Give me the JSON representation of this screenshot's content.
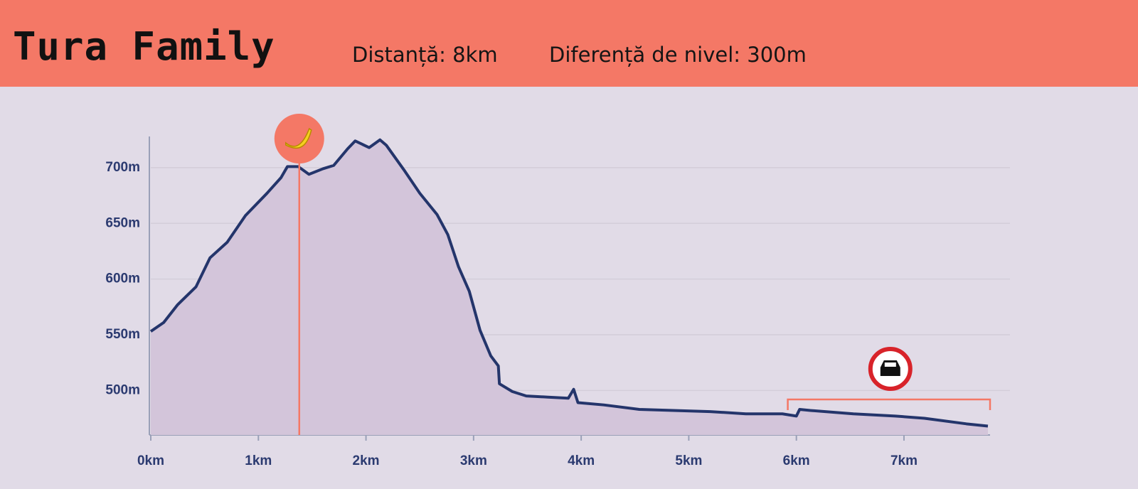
{
  "header": {
    "title": "Tura Family",
    "distance": "Distanță: 8km",
    "elevation": "Diferență de nivel: 300m"
  },
  "chart_data": {
    "type": "area",
    "x": [
      0,
      0.12,
      0.25,
      0.42,
      0.55,
      0.71,
      0.88,
      1.08,
      1.21,
      1.27,
      1.37,
      1.47,
      1.6,
      1.7,
      1.83,
      1.9,
      2.03,
      2.13,
      2.19,
      2.36,
      2.5,
      2.66,
      2.76,
      2.86,
      2.96,
      3.06,
      3.16,
      3.23,
      3.24,
      3.36,
      3.49,
      3.69,
      3.88,
      3.93,
      3.97,
      4.21,
      4.54,
      5.2,
      5.53,
      5.87,
      6.0,
      6.03,
      6.13,
      6.53,
      6.92,
      7.19,
      7.58,
      7.78
    ],
    "series": [
      {
        "color": "#24356b",
        "values": [
          553,
          561,
          577,
          593,
          619,
          633,
          657,
          677,
          691,
          701,
          701,
          694,
          699,
          702,
          717,
          724,
          718,
          725,
          720,
          697,
          677,
          658,
          640,
          611,
          589,
          554,
          531,
          522,
          506,
          499,
          495,
          494,
          493,
          501,
          489,
          487,
          483,
          481,
          479,
          479,
          477,
          483,
          482,
          479,
          477,
          475,
          470,
          468
        ]
      }
    ],
    "xlim": [
      0,
      7.8
    ],
    "ylim": [
      460,
      728
    ],
    "xticks": [
      {
        "value": 0,
        "label": "0km"
      },
      {
        "value": 1,
        "label": "1km"
      },
      {
        "value": 2,
        "label": "2km"
      },
      {
        "value": 3,
        "label": "3km"
      },
      {
        "value": 4,
        "label": "4km"
      },
      {
        "value": 5,
        "label": "5km"
      },
      {
        "value": 6,
        "label": "6km"
      },
      {
        "value": 7,
        "label": "7km"
      }
    ],
    "yticks": [
      {
        "value": 500,
        "label": "500m"
      },
      {
        "value": 550,
        "label": "550m"
      },
      {
        "value": 600,
        "label": "600m"
      },
      {
        "value": 650,
        "label": "650m"
      },
      {
        "value": 700,
        "label": "700m"
      }
    ],
    "grid": true,
    "markers": [
      1.38
    ],
    "restricted_range": [
      5.92,
      7.8
    ]
  }
}
